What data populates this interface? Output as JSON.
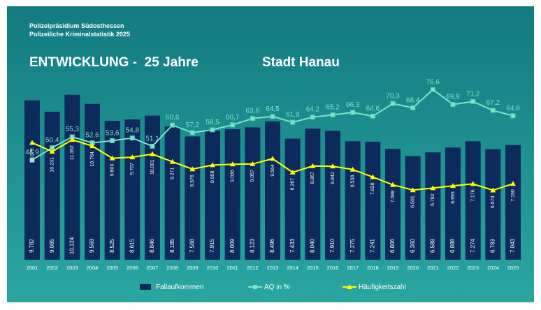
{
  "chart_data": {
    "type": "bar-line",
    "header": [
      "Polizeipräsidium Südosthessen",
      "Polizeiliche Kriminalstatistik 2025"
    ],
    "title": "ENTWICKLUNG -  25 Jahre",
    "subtitle": "Stadt Hanau",
    "categories": [
      "2001",
      "2002",
      "2003",
      "2004",
      "2005",
      "2006",
      "2007",
      "2008",
      "2009",
      "2010",
      "2011",
      "2012",
      "2013",
      "2014",
      "2015",
      "2016",
      "2017",
      "2018",
      "2019",
      "2020",
      "2021",
      "2022",
      "2023",
      "2024",
      "2025"
    ],
    "ylim": [
      0,
      12000
    ],
    "y2lim": [
      0,
      88
    ],
    "y3lim": [
      0,
      18500
    ],
    "series": [
      {
        "name": "Fallaufkommen",
        "color": "#0c2a5c",
        "kind": "bar",
        "values": [
          9782,
          9085,
          10124,
          9569,
          8525,
          8615,
          8846,
          8185,
          7568,
          7915,
          8009,
          8123,
          8496,
          7433,
          8040,
          7910,
          7275,
          7241,
          6806,
          6360,
          6588,
          6888,
          7274,
          6783,
          7043
        ],
        "value_labels": [
          "9.782",
          "9.085",
          "10.124",
          "9.569",
          "8.525",
          "8.615",
          "8.846",
          "8.185",
          "7.568",
          "7.915",
          "8.009",
          "8.123",
          "8.496",
          "7.433",
          "8.040",
          "7.910",
          "7.275",
          "7.241",
          "6.806",
          "6.360",
          "6.588",
          "6.888",
          "7.274",
          "6.783",
          "7.043"
        ]
      },
      {
        "name": "AQ in %",
        "color": "#7fe3c9",
        "kind": "line",
        "axis": "y2",
        "values": [
          44.9,
          50.4,
          55.3,
          52.6,
          53.6,
          54.8,
          51.1,
          60.6,
          57.2,
          58.5,
          60.7,
          63.6,
          64.5,
          61.9,
          64.2,
          65.2,
          66.3,
          64.6,
          70.3,
          68.4,
          76.6,
          69.9,
          71.2,
          67.2,
          64.8
        ],
        "value_labels": [
          "44,9",
          "50,4",
          "55,3",
          "52,6",
          "53,6",
          "54,8",
          "51,1",
          "60,6",
          "57,2",
          "58,5",
          "60,7",
          "63,6",
          "64,5",
          "61,9",
          "64,2",
          "65,2",
          "66,3",
          "64,6",
          "70,3",
          "68,4",
          "76,6",
          "69,9",
          "71,2",
          "67,2",
          "64,8"
        ]
      },
      {
        "name": "Häufigkeitszahl",
        "color": "#ffff00",
        "kind": "line",
        "axis": "y3",
        "values": [
          11079,
          10231,
          11352,
          10764,
          9603,
          9707,
          10001,
          9271,
          8576,
          8958,
          9036,
          9057,
          9564,
          8267,
          8867,
          8842,
          8538,
          7828,
          7088,
          6591,
          6782,
          6993,
          7176,
          6574,
          7190
        ],
        "value_labels": [
          "11.079",
          "10.231",
          "11.352",
          "10.764",
          "9.603",
          "9.707",
          "10.001",
          "9.271",
          "8.576",
          "8.958",
          "9.036",
          "9.057",
          "9.564",
          "8.267",
          "8.867",
          "8.842",
          "8.538",
          "7.828",
          "7.088",
          "6.591",
          "6.782",
          "6.993",
          "7.176",
          "6.574",
          "7.190"
        ]
      }
    ]
  }
}
